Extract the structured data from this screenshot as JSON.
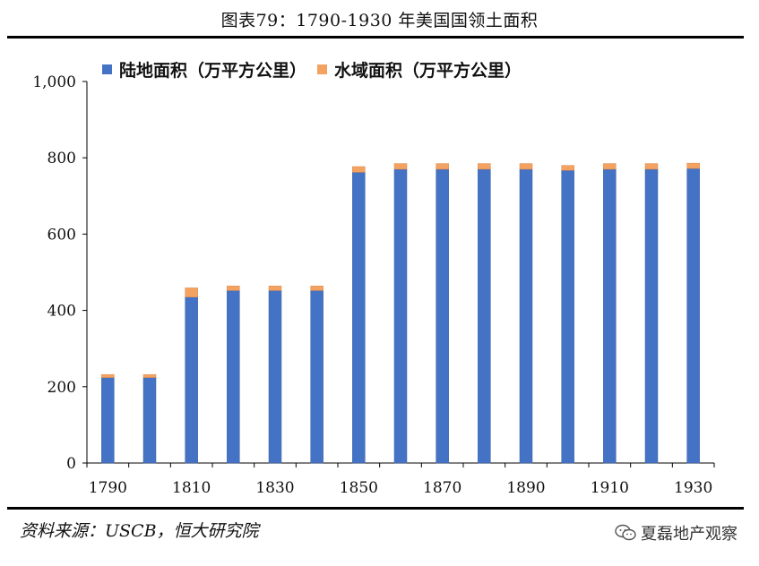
{
  "title": "图表79：1790-1930 年美国国领土面积",
  "source": "资料来源：USCB，恒大研究院",
  "watermark": "夏磊地产观察",
  "chart_data": {
    "type": "bar",
    "stacked": true,
    "categories": [
      1790,
      1800,
      1810,
      1820,
      1830,
      1840,
      1850,
      1860,
      1870,
      1880,
      1890,
      1900,
      1910,
      1920,
      1930
    ],
    "x_tick_labels": [
      "1790",
      "1810",
      "1830",
      "1850",
      "1870",
      "1890",
      "1910",
      "1930"
    ],
    "series": [
      {
        "name": "陆地面积（万平方公里）",
        "color": "#4472C4",
        "values": [
          224,
          224,
          435,
          452,
          452,
          452,
          762,
          770,
          770,
          770,
          770,
          767,
          770,
          770,
          772
        ]
      },
      {
        "name": "水域面积（万平方公里）",
        "color": "#F4A261",
        "values": [
          8,
          8,
          24,
          12,
          12,
          12,
          15,
          15,
          15,
          15,
          15,
          13,
          15,
          15,
          14
        ]
      }
    ],
    "ylim": [
      0,
      1000
    ],
    "y_ticks": [
      0,
      200,
      400,
      600,
      800,
      1000
    ],
    "y_tick_labels": [
      "0",
      "200",
      "400",
      "600",
      "800",
      "1,000"
    ],
    "grid": false,
    "legend_position": "top"
  }
}
